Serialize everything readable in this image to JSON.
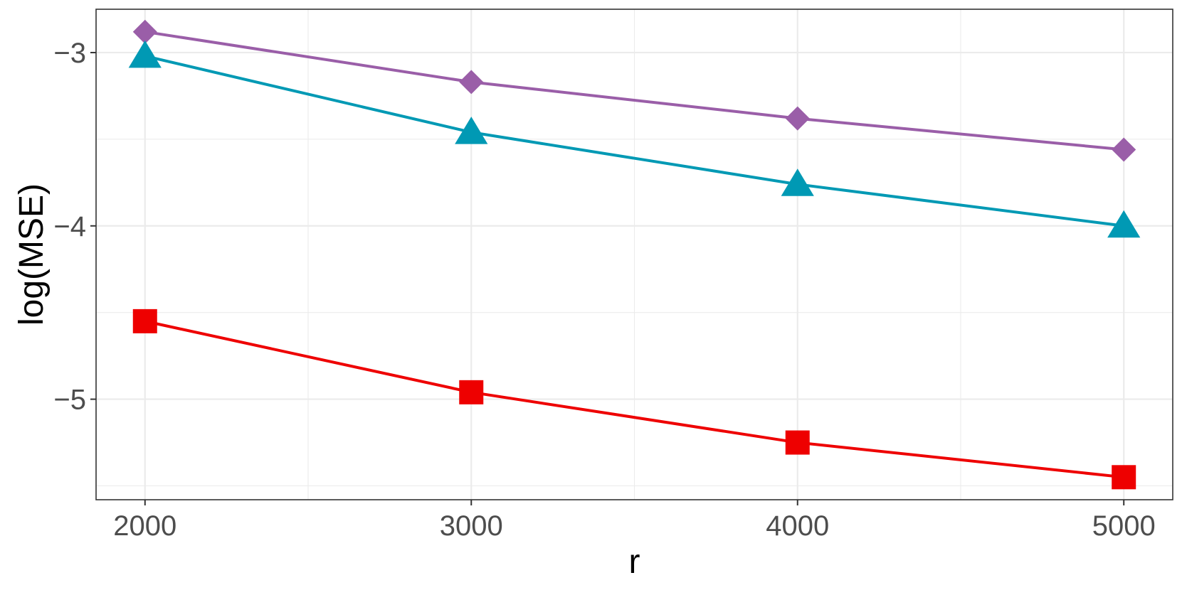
{
  "chart_data": {
    "type": "line",
    "xlabel": "r",
    "ylabel": "log(MSE)",
    "x": [
      2000,
      3000,
      4000,
      5000
    ],
    "xlim": [
      1850,
      5150
    ],
    "ylim": [
      -5.58,
      -2.75
    ],
    "x_ticks": [
      2000,
      3000,
      4000,
      5000
    ],
    "x_tick_labels": [
      "2000",
      "3000",
      "4000",
      "5000"
    ],
    "x_minor_ticks": [
      2500,
      3500,
      4500
    ],
    "y_ticks": [
      -5,
      -4,
      -3
    ],
    "y_tick_labels": [
      "−5",
      "−4",
      "−3"
    ],
    "y_minor_ticks": [
      -5.5,
      -4.5,
      -3.5
    ],
    "grid": true,
    "legend": "none",
    "series": [
      {
        "color": "#9a5ea8",
        "marker": "diamond",
        "values": [
          -2.88,
          -3.17,
          -3.38,
          -3.56
        ]
      },
      {
        "color": "#0099b4",
        "marker": "triangle",
        "values": [
          -3.02,
          -3.46,
          -3.76,
          -4.0
        ]
      },
      {
        "color": "#ee0000",
        "marker": "square",
        "values": [
          -4.55,
          -4.96,
          -5.25,
          -5.45
        ]
      }
    ]
  }
}
